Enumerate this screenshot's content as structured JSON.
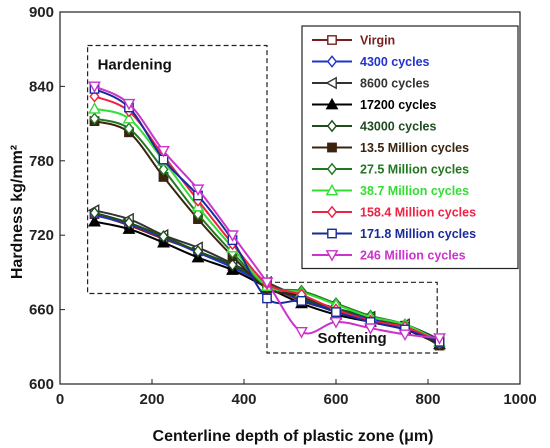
{
  "chart_data": {
    "type": "line",
    "xlabel": "Centerline depth of plastic zone (μm)",
    "ylabel": "Hardness kg/mm²",
    "xlim": [
      0,
      1000
    ],
    "ylim": [
      600,
      900
    ],
    "xticks": [
      "0",
      "200",
      "400",
      "600",
      "800",
      "1000"
    ],
    "yticks": [
      "600",
      "660",
      "720",
      "780",
      "840",
      "900"
    ],
    "grid": false,
    "legend_position": "top-right",
    "annotations": [
      {
        "text": "Hardening",
        "region": {
          "x": [
            60,
            450
          ],
          "y": [
            673,
            873
          ]
        }
      },
      {
        "text": "Softening",
        "region": {
          "x": [
            450,
            820
          ],
          "y": [
            625,
            682
          ]
        }
      }
    ],
    "x": [
      75,
      150,
      225,
      300,
      375,
      450,
      525,
      600,
      675,
      750,
      825
    ],
    "series": [
      {
        "name": "Virgin",
        "color": "#7a1f1f",
        "marker": "square-open",
        "values": [
          737,
          728,
          717,
          707,
          695,
          680,
          667,
          659,
          653,
          647,
          634
        ]
      },
      {
        "name": "4300 cycles",
        "color": "#2233cc",
        "marker": "diamond-open",
        "values": [
          736,
          729,
          718,
          706,
          694,
          680,
          668,
          660,
          652,
          646,
          634
        ]
      },
      {
        "name": "8600 cycles",
        "color": "#333333",
        "marker": "triangle-left-open",
        "values": [
          740,
          733,
          720,
          710,
          697,
          682,
          670,
          661,
          654,
          648,
          636
        ]
      },
      {
        "name": "17200 cycles",
        "color": "#000000",
        "marker": "triangle-filled",
        "values": [
          731,
          725,
          714,
          702,
          692,
          678,
          665,
          656,
          650,
          644,
          632
        ]
      },
      {
        "name": "43000 cycles",
        "color": "#1e4d1e",
        "marker": "diamond-open",
        "values": [
          738,
          730,
          719,
          707,
          696,
          681,
          669,
          661,
          654,
          647,
          635
        ]
      },
      {
        "name": "13.5 Million cycles",
        "color": "#3a2410",
        "marker": "square-filled",
        "values": [
          812,
          803,
          767,
          733,
          703,
          677,
          671,
          660,
          651,
          646,
          631
        ]
      },
      {
        "name": "27.5 Million cycles",
        "color": "#227722",
        "marker": "diamond-open",
        "values": [
          814,
          806,
          773,
          737,
          706,
          679,
          675,
          665,
          655,
          648,
          633
        ]
      },
      {
        "name": "38.7 Million cycles",
        "color": "#33dd33",
        "marker": "triangle-open",
        "values": [
          822,
          814,
          780,
          743,
          710,
          679,
          674,
          664,
          654,
          648,
          634
        ]
      },
      {
        "name": "158.4 Million cycles",
        "color": "#ee2244",
        "marker": "diamond-open",
        "values": [
          832,
          820,
          784,
          748,
          713,
          681,
          672,
          660,
          651,
          646,
          634
        ]
      },
      {
        "name": "171.8 Million cycles",
        "color": "#1a2a9a",
        "marker": "square-open",
        "values": [
          838,
          823,
          781,
          752,
          716,
          669,
          667,
          658,
          650,
          644,
          634
        ]
      },
      {
        "name": "246 Million cycles",
        "color": "#cc33cc",
        "marker": "triangle-down-open",
        "values": [
          840,
          826,
          788,
          757,
          720,
          682,
          642,
          650,
          645,
          640,
          637
        ]
      }
    ]
  }
}
